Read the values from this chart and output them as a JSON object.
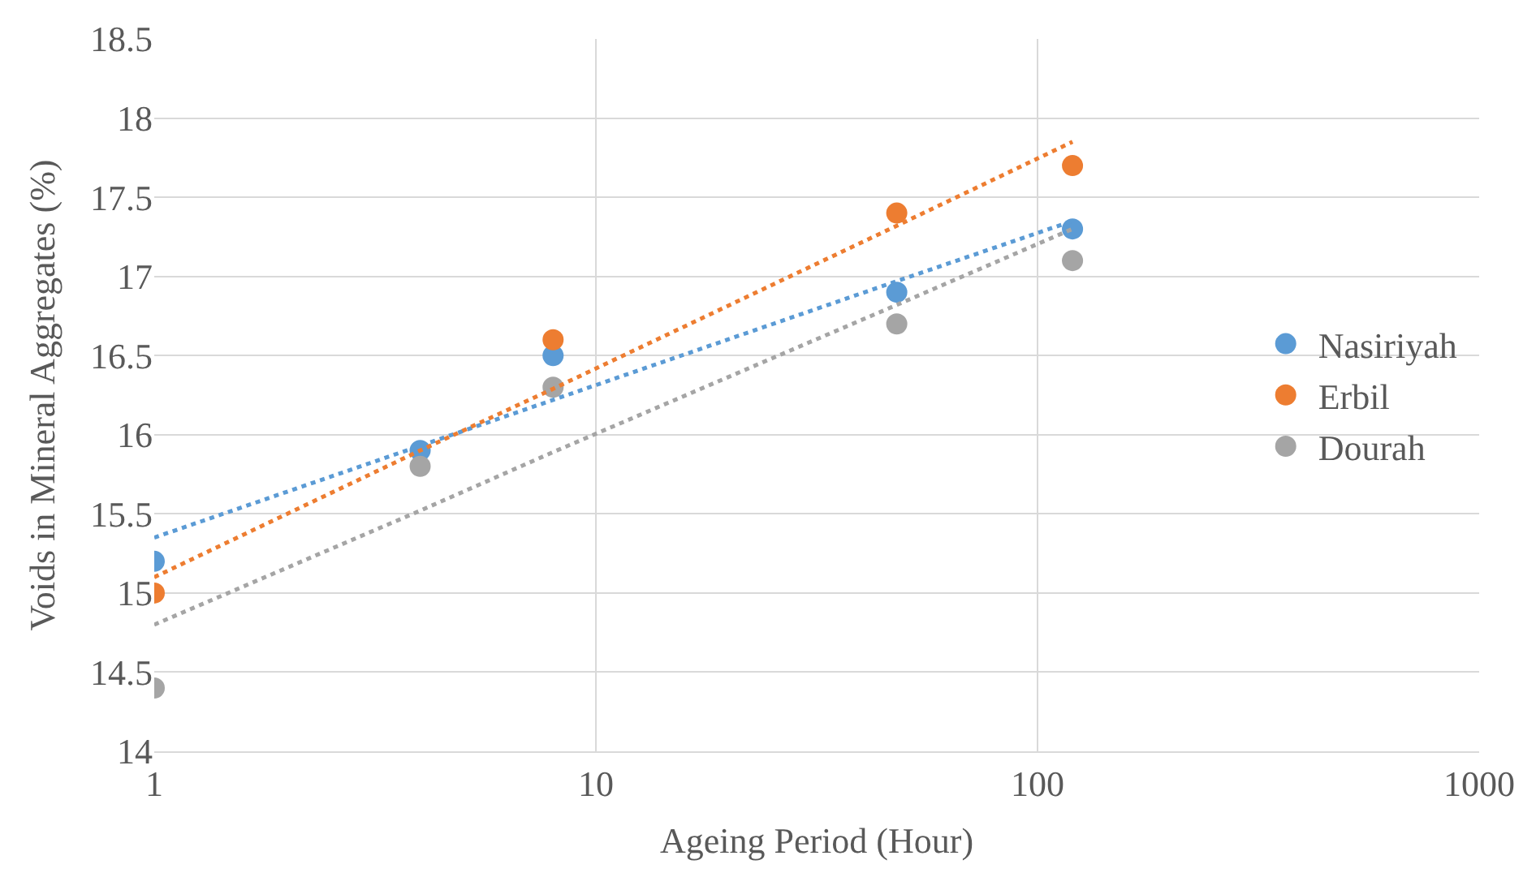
{
  "chart_data": {
    "type": "scatter",
    "xlabel": "Ageing Period (Hour)",
    "ylabel": "Voids in Mineral Aggregates (%)",
    "log": "x",
    "xlim": [
      1,
      1000
    ],
    "xticks": [
      1,
      10,
      100,
      1000
    ],
    "ylim": [
      14,
      18.5
    ],
    "yticks": [
      14,
      14.5,
      15,
      15.5,
      16,
      16.5,
      17,
      17.5,
      18,
      18.5
    ],
    "grid": true,
    "legend": "right",
    "marker": "circle",
    "x": [
      1,
      4,
      8,
      48,
      120
    ],
    "series": [
      {
        "name": "Nasiriyah",
        "color": "#5b9bd5",
        "values": [
          15.2,
          15.9,
          16.5,
          16.9,
          17.3
        ]
      },
      {
        "name": "Erbil",
        "color": "#ed7d31",
        "values": [
          15.0,
          null,
          16.6,
          17.4,
          17.7
        ]
      },
      {
        "name": "Dourah",
        "color": "#a5a5a5",
        "values": [
          14.4,
          15.8,
          16.3,
          16.7,
          17.1
        ]
      },
      {
        "type": "line",
        "marker": "none",
        "color": "#5b9bd5",
        "line_style": "dotted",
        "values": [
          15.35,
          15.93,
          16.22,
          16.97,
          17.35
        ]
      },
      {
        "type": "line",
        "marker": "none",
        "color": "#ed7d31",
        "line_style": "dotted",
        "values": [
          15.1,
          15.9,
          16.29,
          17.32,
          17.85
        ]
      },
      {
        "type": "line",
        "marker": "none",
        "color": "#a5a5a5",
        "line_style": "dotted",
        "values": [
          14.8,
          15.52,
          15.89,
          16.82,
          17.3
        ]
      }
    ]
  }
}
